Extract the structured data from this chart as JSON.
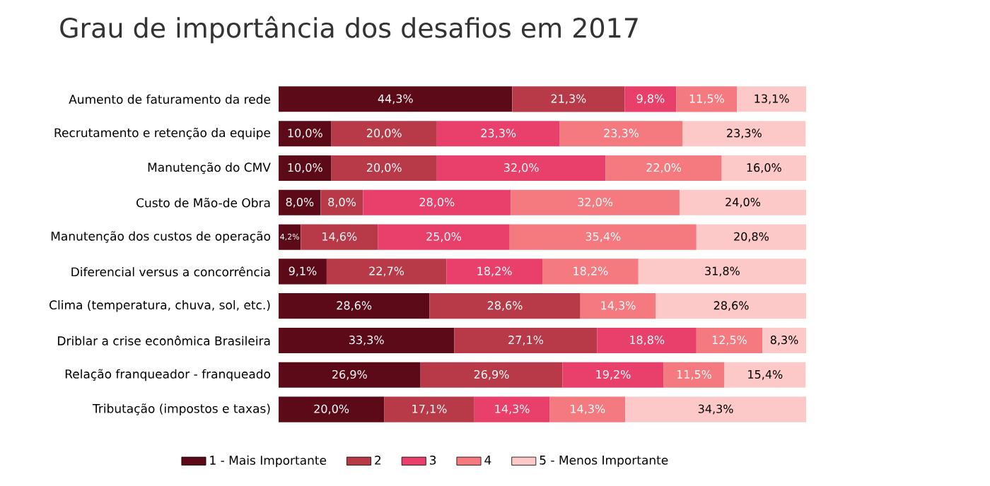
{
  "chart_data": {
    "type": "bar",
    "orientation": "horizontal",
    "stacked": true,
    "title": "Grau de importância dos desafios em 2017",
    "categories": [
      "Aumento de faturamento da rede",
      "Recrutamento e retenção da equipe",
      "Manutenção do CMV",
      "Custo de Mão-de Obra",
      "Manutenção dos custos de operação",
      "Diferencial versus a concorrência",
      "Clima (temperatura, chuva, sol, etc.)",
      "Driblar a crise econômica Brasileira",
      "Relação franqueador - franqueado",
      "Tributação (impostos e taxas)"
    ],
    "xlim": [
      0,
      100
    ],
    "tick_labels": "y",
    "legend": "bottom",
    "series": [
      {
        "name": "1 - Mais Importante",
        "color": "#5c0a18",
        "values": [
          44.3,
          10.0,
          10.0,
          8.0,
          4.2,
          9.1,
          28.6,
          33.3,
          26.9,
          20.0
        ],
        "value_labels": [
          "44,3%",
          "10,0%",
          "10,0%",
          "8,0%",
          "4,2%",
          "9,1%",
          "28,6%",
          "33,3%",
          "26,9%",
          "20,0%"
        ]
      },
      {
        "name": "2",
        "color": "#b83a48",
        "values": [
          21.3,
          20.0,
          20.0,
          8.0,
          14.6,
          22.7,
          28.6,
          27.1,
          26.9,
          17.1
        ],
        "value_labels": [
          "21,3%",
          "20,0%",
          "20,0%",
          "8,0%",
          "14,6%",
          "22,7%",
          "28,6%",
          "27,1%",
          "26,9%",
          "17,1%"
        ]
      },
      {
        "name": "3",
        "color": "#e8406a",
        "values": [
          9.8,
          23.3,
          32.0,
          28.0,
          25.0,
          18.2,
          null,
          18.8,
          19.2,
          14.3
        ],
        "value_labels": [
          "9,8%",
          "23,3%",
          "32,0%",
          "28,0%",
          "25,0%",
          "18,2%",
          null,
          "18,8%",
          "19,2%",
          "14,3%"
        ]
      },
      {
        "name": "4",
        "color": "#f47a80",
        "values": [
          11.5,
          23.3,
          22.0,
          32.0,
          35.4,
          18.2,
          14.3,
          12.5,
          11.5,
          14.3
        ],
        "value_labels": [
          "11,5%",
          "23,3%",
          "22,0%",
          "32,0%",
          "35,4%",
          "18,2%",
          "14,3%",
          "12,5%",
          "11,5%",
          "14,3%"
        ]
      },
      {
        "name": "5 - Menos Importante",
        "color": "#fcc8c8",
        "values": [
          13.1,
          23.3,
          16.0,
          24.0,
          20.8,
          31.8,
          28.6,
          8.3,
          15.4,
          34.3
        ],
        "value_labels": [
          "13,1%",
          "23,3%",
          "16,0%",
          "24,0%",
          "20,8%",
          "31,8%",
          "28,6%",
          "8,3%",
          "15,4%",
          "34,3%"
        ]
      }
    ]
  }
}
